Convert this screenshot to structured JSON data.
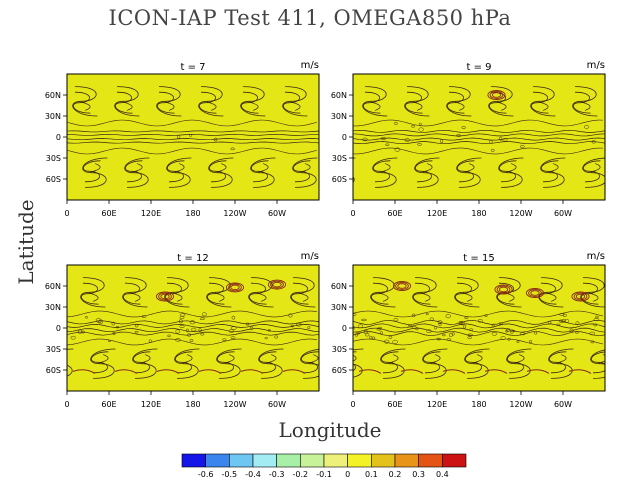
{
  "title": "ICON-IAP Test 411, OMEGA850 hPa",
  "xlabel": "Longitude",
  "ylabel": "Latitude",
  "colors": {
    "field_fill": "#e4e616",
    "contour": "#3a2a10",
    "strong_contour": "#8a2a1a"
  },
  "chart_data": [
    {
      "type": "heatmap",
      "title": "t = 7",
      "units": "m/s",
      "x_ticks": [
        "0",
        "60E",
        "120E",
        "180",
        "120W",
        "60W"
      ],
      "y_ticks": [
        "60N",
        "30N",
        "0",
        "30S",
        "60S"
      ]
    },
    {
      "type": "heatmap",
      "title": "t = 9",
      "units": "m/s",
      "x_ticks": [
        "0",
        "60E",
        "120E",
        "180",
        "120W",
        "60W"
      ],
      "y_ticks": [
        "60N",
        "30N",
        "0",
        "30S",
        "60S"
      ]
    },
    {
      "type": "heatmap",
      "title": "t = 12",
      "units": "m/s",
      "x_ticks": [
        "0",
        "60E",
        "120E",
        "180",
        "120W",
        "60W"
      ],
      "y_ticks": [
        "60N",
        "30N",
        "0",
        "30S",
        "60S"
      ]
    },
    {
      "type": "heatmap",
      "title": "t = 15",
      "units": "m/s",
      "x_ticks": [
        "0",
        "60E",
        "120E",
        "180",
        "120W",
        "60W"
      ],
      "y_ticks": [
        "60N",
        "30N",
        "0",
        "30S",
        "60S"
      ]
    }
  ],
  "colorbar": {
    "labels": [
      "-0.6",
      "-0.5",
      "-0.4",
      "-0.3",
      "-0.2",
      "-0.1",
      "0",
      "0.1",
      "0.2",
      "0.3",
      "0.4"
    ],
    "colors": [
      "#1515e8",
      "#3b86ee",
      "#6ec6f2",
      "#a4ecf4",
      "#a8f0a8",
      "#c8f29a",
      "#eef07c",
      "#f2f226",
      "#e4c21c",
      "#e89418",
      "#e45414",
      "#cc1212"
    ]
  }
}
